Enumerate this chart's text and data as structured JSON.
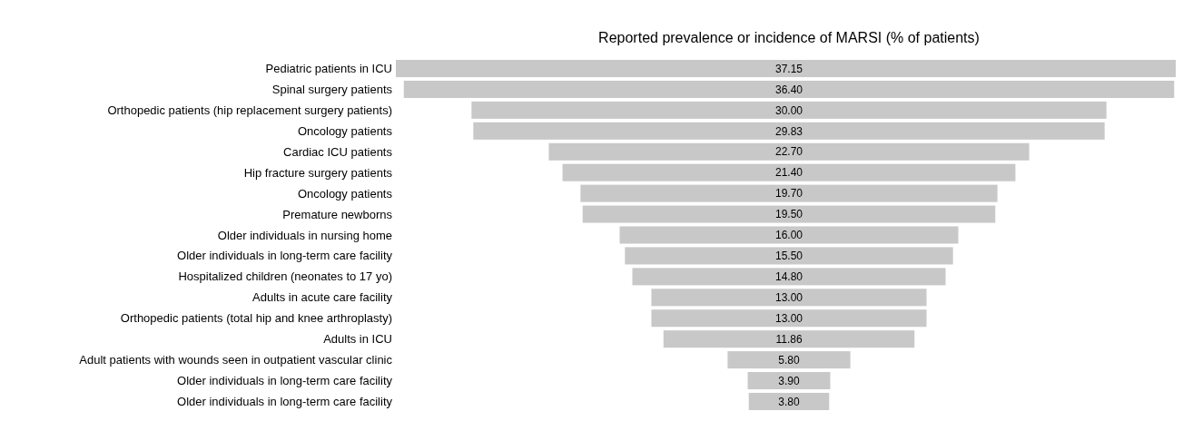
{
  "chart_data": {
    "type": "other",
    "title": "Reported prevalence or incidence of MARSI (% of patients)",
    "categories": [
      "Pediatric patients in ICU",
      "Spinal surgery patients",
      "Orthopedic patients (hip replacement surgery patients)",
      "Oncology patients",
      "Cardiac ICU patients",
      "Hip fracture surgery patients",
      "Oncology patients",
      "Premature newborns",
      "Older individuals in nursing home",
      "Older individuals in long-term care facility",
      "Hospitalized children (neonates to 17 yo)",
      "Adults in acute care facility",
      "Orthopedic patients (total hip and knee arthroplasty)",
      "Adults in ICU",
      "Adult patients with wounds seen in outpatient vascular clinic",
      "Older individuals in long-term care facility",
      "Older individuals in long-term care facility"
    ],
    "values": [
      37.15,
      36.4,
      30.0,
      29.83,
      22.7,
      21.4,
      19.7,
      19.5,
      16.0,
      15.5,
      14.8,
      13.0,
      13.0,
      11.86,
      5.8,
      3.9,
      3.8
    ],
    "value_labels": [
      "37.15",
      "36.40",
      "30.00",
      "29.83",
      "22.70",
      "21.40",
      "19.70",
      "19.50",
      "16.00",
      "15.50",
      "14.80",
      "13.00",
      "13.00",
      "11.86",
      "5.80",
      "3.90",
      "3.80"
    ],
    "color": "#c8c8c8"
  }
}
